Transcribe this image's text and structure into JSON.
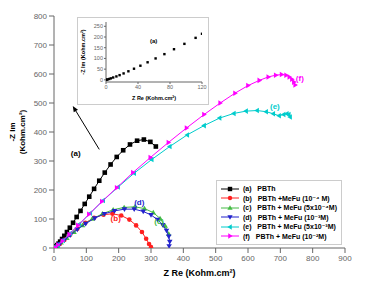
{
  "chart_data": [
    {
      "type": "line",
      "title": "",
      "xlabel": "Z Re (Kohm.cm²)",
      "ylabel": "-Z Im\n(Kohm.cm²)",
      "xlim": [
        0,
        900
      ],
      "ylim": [
        0,
        800
      ],
      "xticks": [
        0,
        100,
        200,
        300,
        400,
        500,
        600,
        700,
        800,
        900
      ],
      "yticks": [
        0,
        100,
        200,
        300,
        400,
        500,
        600,
        700,
        800
      ],
      "grid": false,
      "legend": "lower right",
      "series": [
        {
          "name": "(a)   PBTh",
          "color": "black",
          "marker": "square",
          "line_style": "solid",
          "x": [
            1,
            3,
            6,
            10,
            14,
            19,
            25,
            32,
            40,
            49,
            59,
            70,
            82,
            95,
            109,
            124,
            140,
            157,
            175,
            194,
            214,
            235,
            257,
            278,
            298,
            315
          ],
          "values": [
            1,
            3,
            6,
            10,
            15,
            22,
            31,
            42,
            55,
            70,
            87,
            107,
            128,
            152,
            177,
            204,
            232,
            260,
            288,
            314,
            337,
            357,
            370,
            374,
            366,
            350
          ]
        },
        {
          "name": "(b)   PBTh +MeFu (10⁻⁴ M)",
          "color": "#FF2020",
          "marker": "circle",
          "line_style": "solid",
          "x": [
            2,
            8,
            18,
            32,
            50,
            72,
            97,
            124,
            153,
            181,
            208,
            233,
            254,
            272,
            285,
            294,
            300
          ],
          "values": [
            1,
            5,
            14,
            28,
            46,
            66,
            87,
            104,
            115,
            118,
            112,
            98,
            78,
            55,
            32,
            14,
            3
          ]
        },
        {
          "name": "(c)   PBTh + MeFu (5x10⁻⁴M)",
          "color": "#44BB44",
          "marker": "triangle_up",
          "line_style": "solid",
          "x": [
            2,
            10,
            22,
            40,
            62,
            88,
            118,
            150,
            183,
            217,
            250,
            280,
            307,
            328,
            344,
            355
          ],
          "values": [
            1,
            7,
            18,
            34,
            55,
            78,
            100,
            118,
            132,
            140,
            142,
            136,
            122,
            102,
            76,
            48
          ]
        },
        {
          "name": "(d)   PBTh + MeFu (10⁻³M)",
          "color": "#2222CC",
          "marker": "triangle_down",
          "line_style": "solid",
          "x": [
            2,
            8,
            18,
            32,
            50,
            72,
            98,
            126,
            156,
            187,
            218,
            248,
            276,
            300,
            320,
            336,
            348,
            355,
            358,
            356
          ],
          "values": [
            1,
            5,
            14,
            27,
            44,
            64,
            84,
            103,
            118,
            128,
            134,
            134,
            126,
            114,
            98,
            80,
            60,
            40,
            22,
            7
          ]
        },
        {
          "name": "(e)   PBTh + MeFu (5x10⁻³M)",
          "color": "#00CCCC",
          "marker": "triangle_left",
          "line_style": "solid",
          "x": [
            3,
            12,
            28,
            50,
            78,
            112,
            152,
            198,
            248,
            302,
            358,
            412,
            464,
            512,
            556,
            594,
            628,
            656,
            678,
            696,
            710,
            720,
            726,
            730
          ],
          "values": [
            2,
            10,
            26,
            50,
            82,
            120,
            164,
            210,
            258,
            305,
            350,
            390,
            422,
            448,
            464,
            472,
            474,
            470,
            463,
            456,
            460,
            463,
            460,
            452
          ]
        },
        {
          "name": "(f)   PBTh + MeFu (10⁻²M)",
          "color": "#FF00FF",
          "marker": "triangle_right",
          "line_style": "solid",
          "x": [
            3,
            12,
            26,
            47,
            74,
            108,
            148,
            194,
            244,
            298,
            354,
            410,
            464,
            514,
            560,
            600,
            635,
            663,
            686,
            704,
            718,
            728,
            736,
            742,
            746
          ],
          "values": [
            2,
            10,
            24,
            47,
            78,
            116,
            160,
            208,
            260,
            312,
            364,
            414,
            460,
            500,
            534,
            560,
            578,
            590,
            596,
            598,
            596,
            590,
            582,
            572,
            562
          ]
        }
      ],
      "annotations": [
        {
          "text": "(a)",
          "x": 52,
          "y": 318,
          "color": "black"
        },
        {
          "text": "(b)",
          "x": 175,
          "y": 92,
          "color": "#FF2020"
        },
        {
          "text": "(c)",
          "x": 310,
          "y": 82,
          "color": "#44BB44"
        },
        {
          "text": "(d)",
          "x": 248,
          "y": 148,
          "color": "#2222CC"
        },
        {
          "text": "(e)",
          "x": 668,
          "y": 480,
          "color": "#00CCCC"
        },
        {
          "text": "(f)",
          "x": 748,
          "y": 575,
          "color": "#FF00FF"
        },
        {
          "x": 140,
          "y": 340,
          "x_end": 58,
          "y_end": 490
        }
      ]
    },
    {
      "type": "scatter",
      "title": "",
      "xlabel": "Z Re (Kohm.cm²)",
      "ylabel": "-Z Im (Kohm.cm²)",
      "xlim": [
        0,
        120
      ],
      "ylim": [
        -10,
        270
      ],
      "xticks": [
        0,
        40,
        80,
        120
      ],
      "yticks": [
        0,
        50,
        100,
        150,
        200,
        250
      ],
      "grid": false,
      "series": [
        {
          "color": "black",
          "marker": "square",
          "line_style": "none",
          "x": [
            0.2,
            0.8,
            2,
            4,
            6,
            9,
            13,
            17,
            22,
            28,
            35,
            43,
            52,
            62,
            73,
            85,
            98,
            112,
            120
          ],
          "values": [
            0.2,
            0.8,
            2,
            4,
            7,
            11,
            16,
            22,
            30,
            40,
            52,
            66,
            82,
            100,
            120,
            143,
            168,
            196,
            215
          ]
        }
      ],
      "annotations": [
        {
          "text": "(a)",
          "x": 55,
          "y": 170,
          "color": "black"
        }
      ]
    }
  ]
}
